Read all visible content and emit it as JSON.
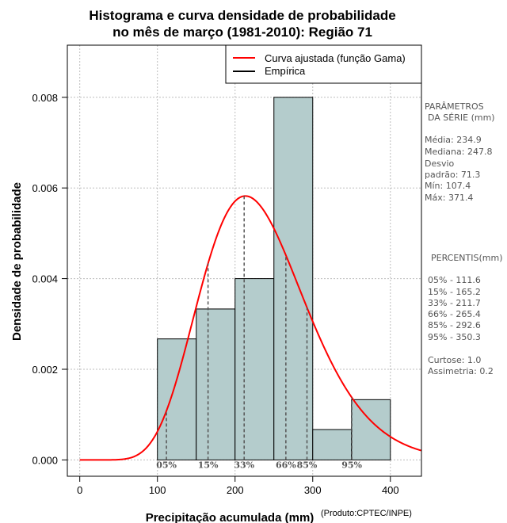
{
  "chart_data": {
    "type": "bar",
    "title_lines": [
      "Histograma e curva densidade de probabilidade",
      "no mês de março (1981-2010): Região 71"
    ],
    "xlabel": "Precipitação acumulada (mm)",
    "ylabel": "Densidade de probabilidade",
    "credit": "(Produto:CPTEC/INPE)",
    "xlim": [
      -16,
      440
    ],
    "ylim": [
      -0.00036,
      0.00915
    ],
    "x_ticks": [
      0,
      100,
      200,
      300,
      400
    ],
    "x_tick_labels": [
      "0",
      "100",
      "200",
      "300",
      "400"
    ],
    "y_ticks": [
      0,
      0.002,
      0.004,
      0.006,
      0.008
    ],
    "y_tick_labels": [
      "0.000",
      "0.002",
      "0.004",
      "0.006",
      "0.008"
    ],
    "grid": true,
    "bins": [
      {
        "x0": 100,
        "x1": 150,
        "density": 0.00267
      },
      {
        "x0": 150,
        "x1": 200,
        "density": 0.00333
      },
      {
        "x0": 200,
        "x1": 250,
        "density": 0.004
      },
      {
        "x0": 250,
        "x1": 300,
        "density": 0.008
      },
      {
        "x0": 300,
        "x1": 350,
        "density": 0.00067
      },
      {
        "x0": 350,
        "x1": 400,
        "density": 0.00133
      }
    ],
    "bar_color": "#b4cccc",
    "curve": {
      "name": "Curva ajustada (função Gama)",
      "color": "#ff0000",
      "mean": 234.9,
      "sd": 71.3,
      "x_range": [
        0,
        440
      ]
    },
    "legend": {
      "position": "top-right",
      "entries": [
        {
          "label": "Curva ajustada (função Gama)",
          "color": "#ff0000"
        },
        {
          "label": "Empírica",
          "color": "#000000"
        }
      ]
    },
    "percentile_markers": [
      {
        "label": "05%",
        "value": 111.6
      },
      {
        "label": "15%",
        "value": 165.2
      },
      {
        "label": "33%",
        "value": 211.7
      },
      {
        "label": "66%",
        "value": 265.4
      },
      {
        "label": "85%",
        "value": 292.6
      },
      {
        "label": "95%",
        "value": 350.3
      }
    ]
  },
  "side_panel": {
    "params_title": "PARÂMETROS",
    "params_subtitle": "DA SÉRIE (mm)",
    "params_lines": [
      "Média:  234.9",
      "Mediana:  247.8",
      "Desvio",
      "padrão:  71.3",
      "Mín:  107.4",
      "Máx:  371.4"
    ],
    "percentis_title": "PERCENTIS(mm)",
    "percentis_lines": [
      "05% -   111.6",
      "15% -   165.2",
      "33% -   211.7",
      "66% -   265.4",
      "85% -   292.6",
      "95% -   350.3"
    ],
    "stats_lines": [
      "Curtose:  1.0",
      "Assimetria:  0.2"
    ]
  }
}
